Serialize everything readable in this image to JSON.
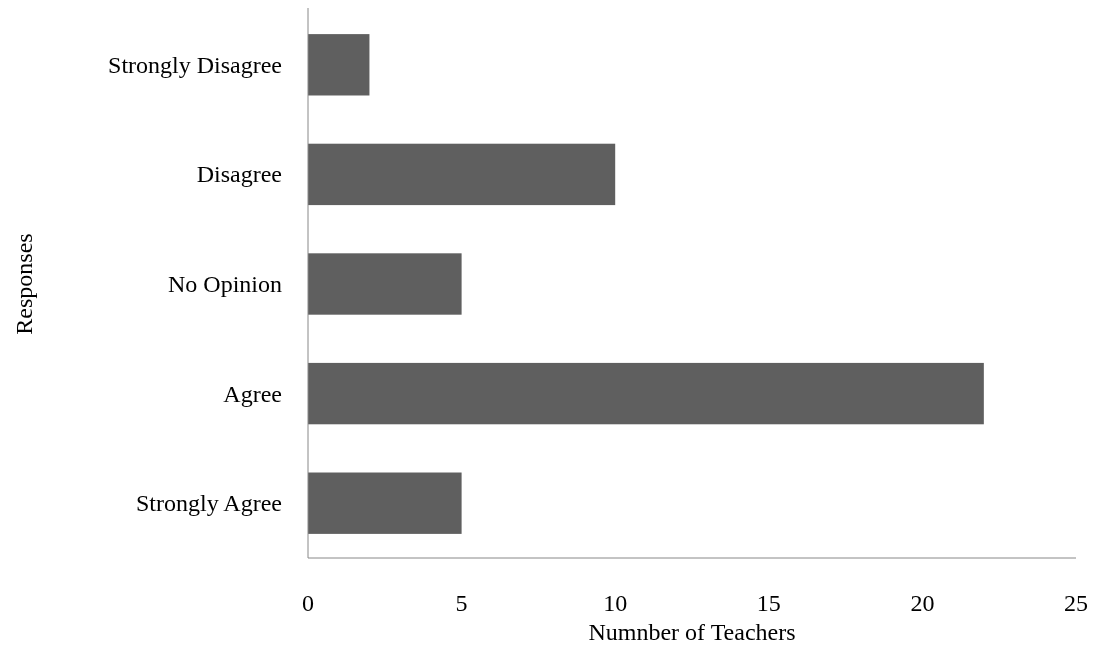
{
  "chart_data": {
    "type": "bar",
    "orientation": "horizontal",
    "xlabel": "Numnber of Teachers",
    "ylabel": "Responses",
    "categories": [
      "Strongly Disagree",
      "Disagree",
      "No Opinion",
      "Agree",
      "Strongly Agree"
    ],
    "values": [
      2,
      10,
      5,
      22,
      5
    ],
    "color": "#5f5f5f",
    "xlim": [
      0,
      25
    ],
    "xticks": [
      0,
      5,
      10,
      15,
      20,
      25
    ]
  }
}
